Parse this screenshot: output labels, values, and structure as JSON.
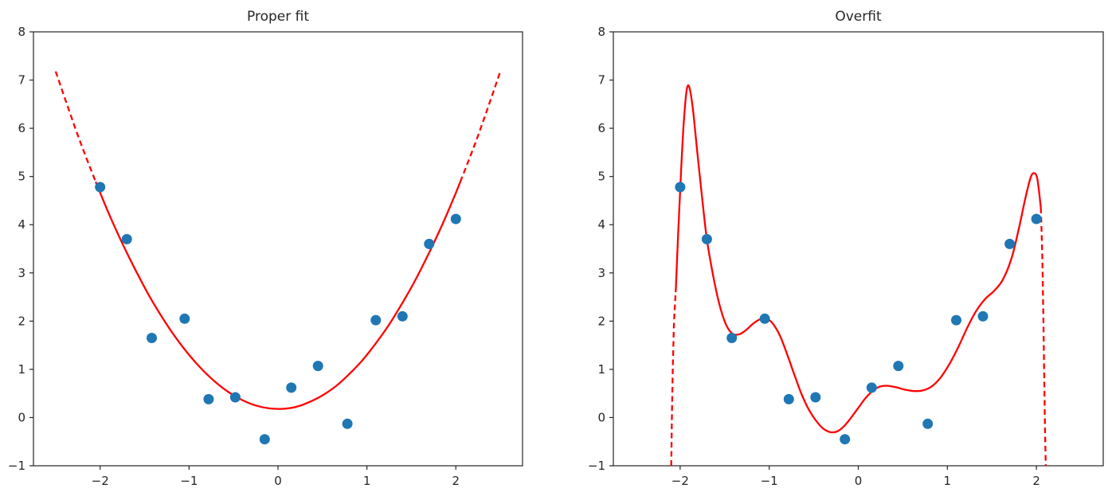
{
  "figure": {
    "background": "#ffffff"
  },
  "colors": {
    "scatter": "#1f77b4",
    "curve": "#ff0000",
    "axis": "#262626",
    "text": "#262626"
  },
  "chart_data": [
    {
      "type": "scatter",
      "title": "Proper fit",
      "xlabel": "",
      "ylabel": "",
      "xlim": [
        -2.75,
        2.75
      ],
      "ylim": [
        -1,
        8
      ],
      "grid": false,
      "legend": "none",
      "xticks": {
        "values": [
          -2,
          -1,
          0,
          1,
          2
        ],
        "labels": [
          "−2",
          "−1",
          "0",
          "1",
          "2"
        ]
      },
      "yticks": {
        "values": [
          -1,
          0,
          1,
          2,
          3,
          4,
          5,
          6,
          7,
          8
        ],
        "labels": [
          "−1",
          "0",
          "1",
          "2",
          "3",
          "4",
          "5",
          "6",
          "7",
          "8"
        ]
      },
      "scatter_points": [
        [
          -2.0,
          4.78
        ],
        [
          -1.7,
          3.7
        ],
        [
          -1.42,
          1.65
        ],
        [
          -1.05,
          2.05
        ],
        [
          -0.78,
          0.38
        ],
        [
          -0.48,
          0.42
        ],
        [
          -0.15,
          -0.45
        ],
        [
          0.15,
          0.62
        ],
        [
          0.45,
          1.07
        ],
        [
          0.78,
          -0.13
        ],
        [
          1.1,
          2.02
        ],
        [
          1.4,
          2.1
        ],
        [
          1.7,
          3.6
        ],
        [
          2.0,
          4.12
        ]
      ],
      "fit_curve": {
        "description": "quadratic fit; dashed segments are extrapolation beyond the data range",
        "segments": [
          {
            "style": "dashed",
            "points": [
              [
                -2.5,
                7.18
              ],
              [
                -2.35,
                6.37
              ],
              [
                -2.2,
                5.6
              ],
              [
                -2.05,
                4.89
              ]
            ]
          },
          {
            "style": "solid",
            "points": [
              [
                -2.05,
                4.89
              ],
              [
                -1.9,
                4.22
              ],
              [
                -1.75,
                3.61
              ],
              [
                -1.6,
                3.05
              ],
              [
                -1.45,
                2.53
              ],
              [
                -1.3,
                2.07
              ],
              [
                -1.15,
                1.66
              ],
              [
                -1.0,
                1.3
              ],
              [
                -0.85,
                0.99
              ],
              [
                -0.7,
                0.73
              ],
              [
                -0.55,
                0.52
              ],
              [
                -0.4,
                0.36
              ],
              [
                -0.25,
                0.25
              ],
              [
                -0.1,
                0.19
              ],
              [
                0.05,
                0.18
              ],
              [
                0.2,
                0.22
              ],
              [
                0.35,
                0.32
              ],
              [
                0.5,
                0.46
              ],
              [
                0.65,
                0.65
              ],
              [
                0.8,
                0.9
              ],
              [
                0.95,
                1.19
              ],
              [
                1.1,
                1.54
              ],
              [
                1.25,
                1.93
              ],
              [
                1.4,
                2.38
              ],
              [
                1.55,
                2.87
              ],
              [
                1.7,
                3.42
              ],
              [
                1.85,
                4.01
              ],
              [
                2.0,
                4.66
              ],
              [
                2.05,
                4.89
              ]
            ]
          },
          {
            "style": "dashed",
            "points": [
              [
                2.05,
                4.89
              ],
              [
                2.2,
                5.6
              ],
              [
                2.35,
                6.37
              ],
              [
                2.5,
                7.18
              ]
            ]
          }
        ]
      }
    },
    {
      "type": "scatter",
      "title": "Overfit",
      "xlabel": "",
      "ylabel": "",
      "xlim": [
        -2.75,
        2.75
      ],
      "ylim": [
        -1,
        8
      ],
      "grid": false,
      "legend": "none",
      "xticks": {
        "values": [
          -2,
          -1,
          0,
          1,
          2
        ],
        "labels": [
          "−2",
          "−1",
          "0",
          "1",
          "2"
        ]
      },
      "yticks": {
        "values": [
          -1,
          0,
          1,
          2,
          3,
          4,
          5,
          6,
          7,
          8
        ],
        "labels": [
          "−1",
          "0",
          "1",
          "2",
          "3",
          "4",
          "5",
          "6",
          "7",
          "8"
        ]
      },
      "scatter_points": [
        [
          -2.0,
          4.78
        ],
        [
          -1.7,
          3.7
        ],
        [
          -1.42,
          1.65
        ],
        [
          -1.05,
          2.05
        ],
        [
          -0.78,
          0.38
        ],
        [
          -0.48,
          0.42
        ],
        [
          -0.15,
          -0.45
        ],
        [
          0.15,
          0.62
        ],
        [
          0.45,
          1.07
        ],
        [
          0.78,
          -0.13
        ],
        [
          1.1,
          2.02
        ],
        [
          1.4,
          2.1
        ],
        [
          1.7,
          3.6
        ],
        [
          2.0,
          4.12
        ]
      ],
      "fit_curve": {
        "description": "high-degree polynomial fit; dashed segments dive off-scale just outside the data range",
        "segments": [
          {
            "style": "dashed",
            "points": [
              [
                -2.1,
                -1.0
              ],
              [
                -2.09,
                0.3
              ],
              [
                -2.08,
                1.2
              ],
              [
                -2.07,
                1.9
              ],
              [
                -2.06,
                2.3
              ],
              [
                -2.05,
                2.6
              ]
            ]
          },
          {
            "style": "solid",
            "points": [
              [
                -2.05,
                2.6
              ],
              [
                -2.02,
                3.9
              ],
              [
                -1.99,
                5.1
              ],
              [
                -1.96,
                6.1
              ],
              [
                -1.93,
                6.75
              ],
              [
                -1.9,
                6.87
              ],
              [
                -1.86,
                6.45
              ],
              [
                -1.81,
                5.55
              ],
              [
                -1.75,
                4.5
              ],
              [
                -1.7,
                3.7
              ],
              [
                -1.63,
                2.95
              ],
              [
                -1.56,
                2.35
              ],
              [
                -1.49,
                1.95
              ],
              [
                -1.42,
                1.75
              ],
              [
                -1.35,
                1.72
              ],
              [
                -1.27,
                1.8
              ],
              [
                -1.18,
                1.95
              ],
              [
                -1.1,
                2.04
              ],
              [
                -1.03,
                2.05
              ],
              [
                -0.96,
                1.95
              ],
              [
                -0.88,
                1.7
              ],
              [
                -0.8,
                1.32
              ],
              [
                -0.72,
                0.9
              ],
              [
                -0.64,
                0.5
              ],
              [
                -0.56,
                0.18
              ],
              [
                -0.48,
                -0.05
              ],
              [
                -0.4,
                -0.22
              ],
              [
                -0.32,
                -0.3
              ],
              [
                -0.24,
                -0.29
              ],
              [
                -0.16,
                -0.18
              ],
              [
                -0.08,
                0.0
              ],
              [
                0.0,
                0.2
              ],
              [
                0.08,
                0.4
              ],
              [
                0.16,
                0.55
              ],
              [
                0.24,
                0.64
              ],
              [
                0.32,
                0.66
              ],
              [
                0.42,
                0.63
              ],
              [
                0.52,
                0.58
              ],
              [
                0.62,
                0.55
              ],
              [
                0.72,
                0.56
              ],
              [
                0.82,
                0.64
              ],
              [
                0.92,
                0.82
              ],
              [
                1.02,
                1.1
              ],
              [
                1.12,
                1.45
              ],
              [
                1.22,
                1.85
              ],
              [
                1.32,
                2.2
              ],
              [
                1.42,
                2.45
              ],
              [
                1.52,
                2.62
              ],
              [
                1.62,
                2.85
              ],
              [
                1.72,
                3.3
              ],
              [
                1.8,
                3.9
              ],
              [
                1.87,
                4.5
              ],
              [
                1.93,
                4.95
              ],
              [
                1.97,
                5.07
              ],
              [
                2.01,
                4.95
              ],
              [
                2.05,
                4.35
              ]
            ]
          },
          {
            "style": "dashed",
            "points": [
              [
                2.05,
                4.35
              ],
              [
                2.065,
                3.4
              ],
              [
                2.075,
                2.4
              ],
              [
                2.085,
                1.2
              ],
              [
                2.095,
                -0.1
              ],
              [
                2.105,
                -1.0
              ]
            ]
          }
        ]
      }
    }
  ]
}
